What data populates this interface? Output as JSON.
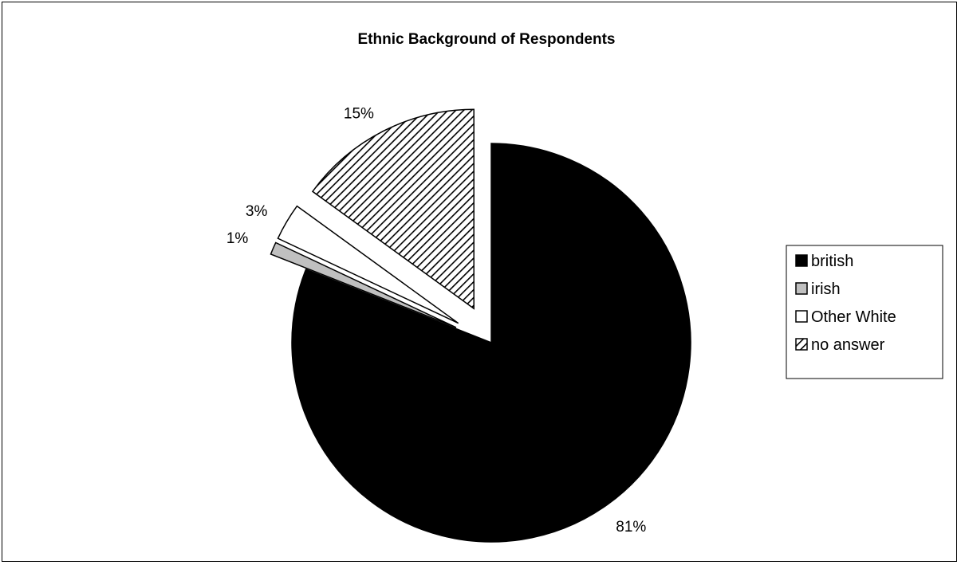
{
  "chart_data": {
    "type": "pie",
    "title": "Ethnic Background of Respondents",
    "categories": [
      "british",
      "irish",
      "Other White",
      "no answer"
    ],
    "values": [
      81,
      1,
      3,
      15
    ],
    "data_labels": [
      "81%",
      "1%",
      "3%",
      "15%"
    ],
    "exploded": [
      false,
      true,
      true,
      true
    ],
    "slice_fills": [
      "solid-black",
      "light-gray",
      "white",
      "diagonal-stripes"
    ],
    "colors": {
      "british": "#000000",
      "irish": "#c0c0c0",
      "other_white": "#ffffff",
      "no_answer_stripe": "#000000",
      "outline": "#000000"
    },
    "legend": {
      "position": "right",
      "entries": [
        "british",
        "irish",
        "Other White",
        "no answer"
      ]
    }
  }
}
